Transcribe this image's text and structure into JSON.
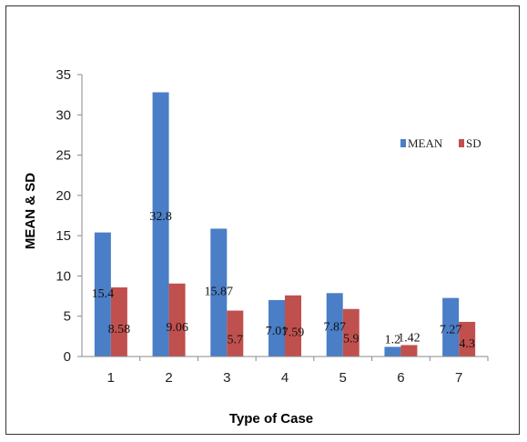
{
  "chart_data": {
    "type": "bar",
    "title": "",
    "xlabel": "Type of Case",
    "ylabel": "MEAN & SD",
    "categories": [
      "1",
      "2",
      "3",
      "4",
      "5",
      "6",
      "7"
    ],
    "series": [
      {
        "name": "MEAN",
        "color": "#4a7ec6",
        "values": [
          15.4,
          32.8,
          15.87,
          7.01,
          7.87,
          1.2,
          7.27
        ]
      },
      {
        "name": "SD",
        "color": "#c0504d",
        "values": [
          8.58,
          9.06,
          5.7,
          7.59,
          5.9,
          1.42,
          4.3
        ]
      }
    ],
    "data_labels": [
      [
        "15.4",
        "32.8",
        "15.87",
        "7.01",
        "7.87",
        "1.2",
        "7.27"
      ],
      [
        "8.58",
        "9.06",
        "5.7",
        "7.59",
        "5.9",
        "1.42",
        "4.3"
      ]
    ],
    "ylim": [
      0,
      35
    ],
    "yticks": [
      "0",
      "5",
      "10",
      "15",
      "20",
      "25",
      "30",
      "35"
    ],
    "grid": false,
    "legend_position": "right"
  }
}
